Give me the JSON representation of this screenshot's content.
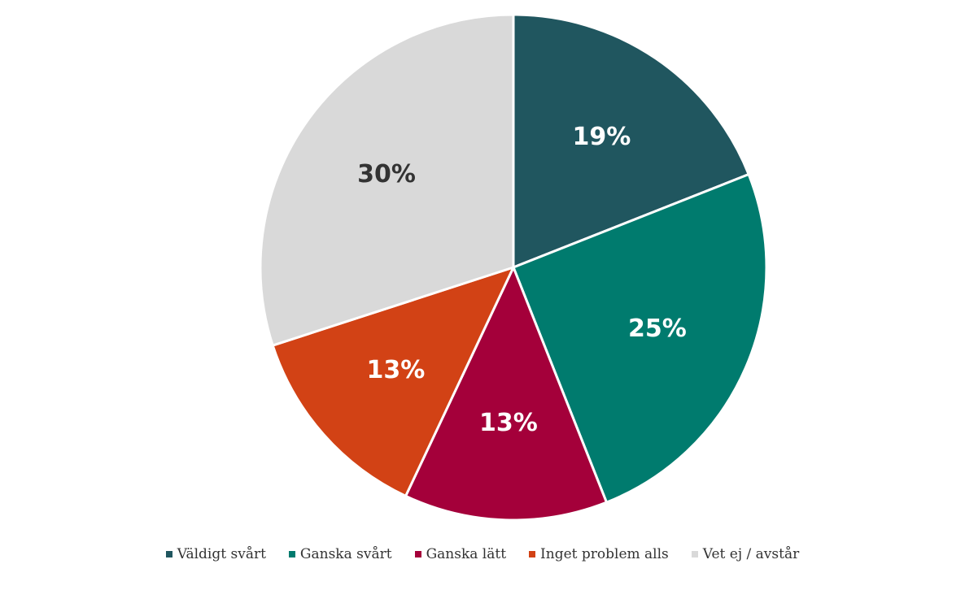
{
  "chart_data": {
    "type": "pie",
    "slices": [
      {
        "label": "Väldigt svårt",
        "value": 19,
        "display": "19%",
        "color": "#20565f",
        "label_color": "#ffffff"
      },
      {
        "label": "Ganska svårt",
        "value": 25,
        "display": "25%",
        "color": "#007b6e",
        "label_color": "#ffffff"
      },
      {
        "label": "Ganska lätt",
        "value": 13,
        "display": "13%",
        "color": "#a4003a",
        "label_color": "#ffffff"
      },
      {
        "label": "Inget problem alls",
        "value": 13,
        "display": "13%",
        "color": "#d24215",
        "label_color": "#ffffff"
      },
      {
        "label": "Vet ej / avstår",
        "value": 30,
        "display": "30%",
        "color": "#d9d9d9",
        "label_color": "#333333"
      }
    ],
    "start": "top",
    "direction": "clockwise",
    "legend_position": "bottom"
  }
}
